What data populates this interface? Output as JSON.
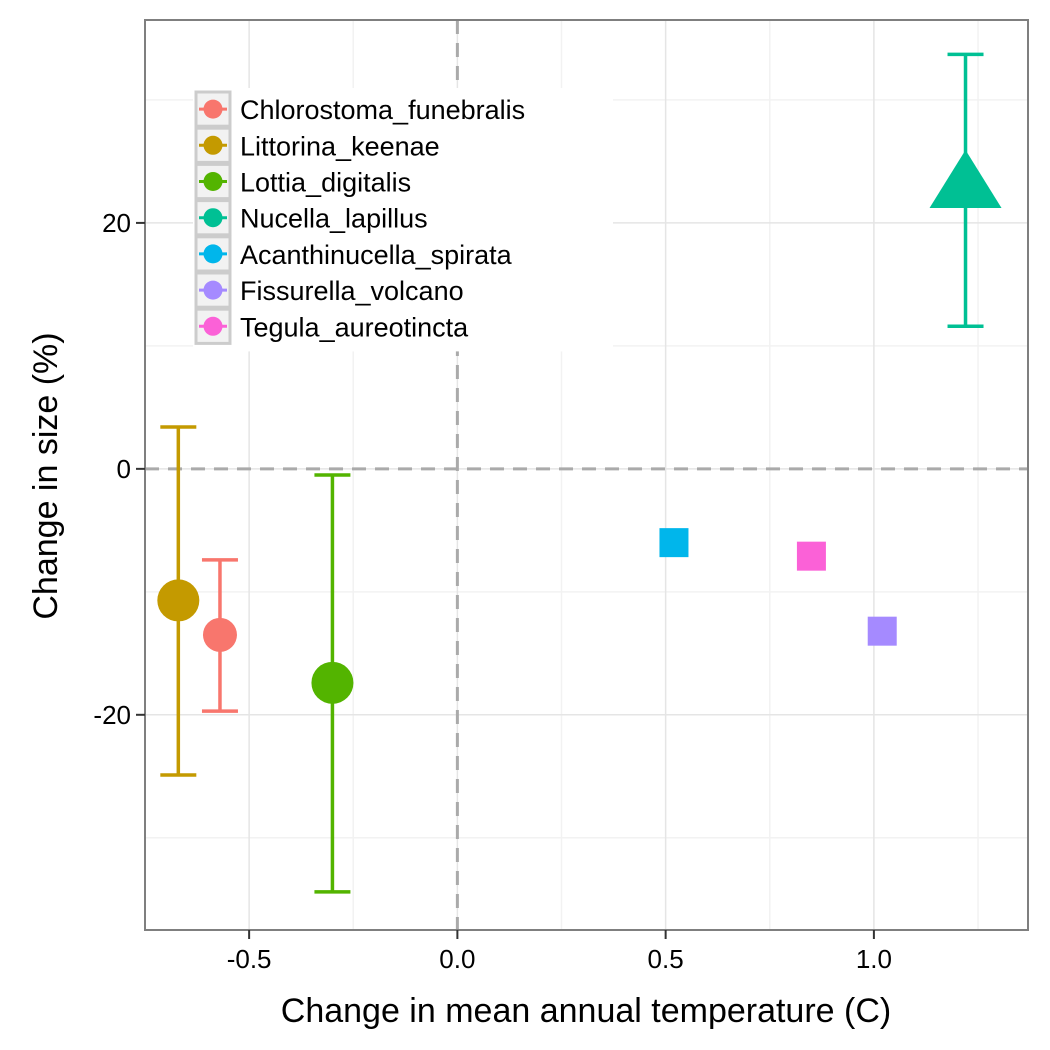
{
  "chart_data": {
    "type": "scatter",
    "title": "",
    "xlabel": "Change in mean annual temperature (C)",
    "ylabel": "Change in size (%)",
    "xlim": [
      -0.75,
      1.37
    ],
    "ylim": [
      -37.5,
      36.5
    ],
    "x_ticks": [
      -0.5,
      0.0,
      0.5,
      1.0
    ],
    "x_tick_labels": [
      "-0.5",
      "0.0",
      "0.5",
      "1.0"
    ],
    "y_ticks": [
      -20,
      0,
      20
    ],
    "y_tick_labels": [
      "-20",
      "0",
      "20"
    ],
    "grid": true,
    "reference_lines": {
      "x": 0,
      "y": 0,
      "style": "dashed"
    },
    "legend_position": "top-left",
    "series": [
      {
        "name": "Chlorostoma_funebralis",
        "color": "#F8766D",
        "shape": "circle",
        "x": -0.57,
        "y": -13.5,
        "err_low": -19.7,
        "err_high": -7.4
      },
      {
        "name": "Littorina_keenae",
        "color": "#C49A00",
        "shape": "circle",
        "x": -0.67,
        "y": -10.7,
        "err_low": -24.9,
        "err_high": 3.4
      },
      {
        "name": "Lottia_digitalis",
        "color": "#53B400",
        "shape": "circle",
        "x": -0.3,
        "y": -17.4,
        "err_low": -34.4,
        "err_high": -0.5
      },
      {
        "name": "Nucella_lapillus",
        "color": "#00C094",
        "shape": "triangle",
        "x": 1.22,
        "y": 23.0,
        "err_low": 11.6,
        "err_high": 33.7
      },
      {
        "name": "Acanthinucella_spirata",
        "color": "#00B6EB",
        "shape": "square",
        "x": 0.52,
        "y": -6.0
      },
      {
        "name": "Fissurella_volcano",
        "color": "#A58AFF",
        "shape": "square",
        "x": 1.02,
        "y": -13.2
      },
      {
        "name": "Tegula_aureotincta",
        "color": "#FB61D7",
        "shape": "square",
        "x": 0.85,
        "y": -7.1
      }
    ]
  }
}
